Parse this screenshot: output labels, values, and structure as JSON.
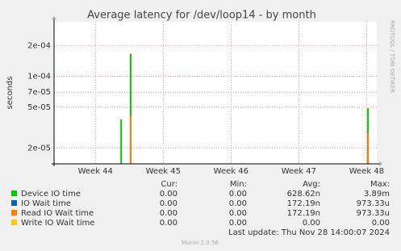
{
  "chart_data": {
    "type": "spike",
    "title": "Average latency for /dev/loop14 - by month",
    "y_label": "seconds",
    "side_text": "RRDTOOL / TOBI OETIKER",
    "log_y": true,
    "grid": true,
    "ylim": [
      1.4e-05,
      0.00034
    ],
    "yticks": [
      {
        "value": 2e-05,
        "label": "2e-05"
      },
      {
        "value": 5e-05,
        "label": "5e-05"
      },
      {
        "value": 7e-05,
        "label": "7e-05"
      },
      {
        "value": 0.0001,
        "label": "1e-04"
      },
      {
        "value": 0.0002,
        "label": "2e-04"
      }
    ],
    "xlim": [
      43.39,
      48.15
    ],
    "xticks": [
      {
        "value": 44,
        "label": "Week 44"
      },
      {
        "value": 45,
        "label": "Week 45"
      },
      {
        "value": 46,
        "label": "Week 46"
      },
      {
        "value": 47,
        "label": "Week 47"
      },
      {
        "value": 48,
        "label": "Week 48"
      }
    ],
    "series": [
      {
        "name": "Device IO time",
        "color": "#00cc00",
        "x": [
          44.38,
          44.52,
          48.02
        ],
        "values": [
          3.8e-05,
          0.000166,
          4.9e-05
        ]
      },
      {
        "name": "IO Wait time",
        "color": "#0066b3",
        "x": [
          44.52,
          48.02
        ],
        "values": [
          4.1e-05,
          2.8e-05
        ]
      },
      {
        "name": "Read IO Wait time",
        "color": "#ff8000",
        "x": [
          44.52,
          48.02
        ],
        "values": [
          4.1e-05,
          2.8e-05
        ]
      },
      {
        "name": "Write IO Wait time",
        "color": "#ffcc00",
        "x": [],
        "values": []
      }
    ],
    "table": {
      "headers": [
        "Cur:",
        "Min:",
        "Avg:",
        "Max:"
      ],
      "rows": [
        [
          "0.00",
          "0.00",
          "628.62n",
          "3.89m"
        ],
        [
          "0.00",
          "0.00",
          "172.19n",
          "973.33u"
        ],
        [
          "0.00",
          "0.00",
          "172.19n",
          "973.33u"
        ],
        [
          "0.00",
          "0.00",
          "0.00",
          "0.00"
        ]
      ]
    },
    "last_update": "Last update: Thu Nov 28 14:00:07 2024",
    "footer": "Munin 2.0.56"
  }
}
